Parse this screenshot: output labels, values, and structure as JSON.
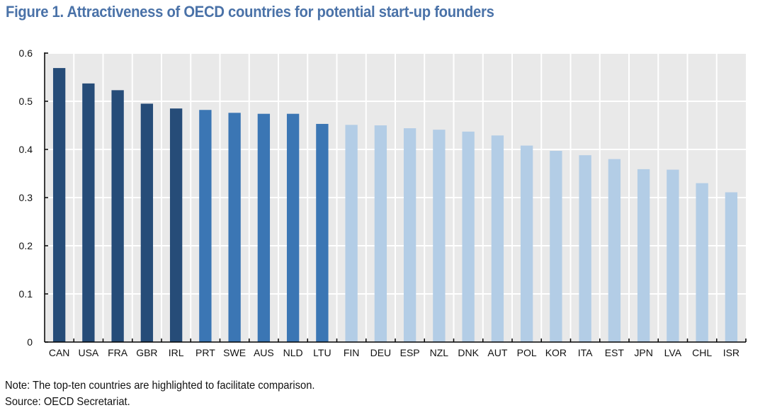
{
  "title": "Figure 1. Attractiveness of OECD countries for potential start-up founders",
  "note": "Note: The top-ten countries are highlighted to facilitate comparison.",
  "source": "Source: OECD Secretariat.",
  "colors": {
    "dark": "#264c78",
    "mid": "#3b76b4",
    "light": "#b3cde6",
    "plot_bg": "#e9e9e9",
    "grid": "#ffffff",
    "title": "#4a72a8"
  },
  "chart_data": {
    "type": "bar",
    "title": "Figure 1. Attractiveness of OECD countries for potential start-up founders",
    "xlabel": "",
    "ylabel": "",
    "ylim": [
      0,
      0.6
    ],
    "yticks": [
      "0",
      "0.1",
      "0.2",
      "0.3",
      "0.4",
      "0.5",
      "0.6"
    ],
    "grid": true,
    "categories": [
      "CAN",
      "USA",
      "FRA",
      "GBR",
      "IRL",
      "PRT",
      "SWE",
      "AUS",
      "NLD",
      "LTU",
      "FIN",
      "DEU",
      "ESP",
      "NZL",
      "DNK",
      "AUT",
      "POL",
      "KOR",
      "ITA",
      "EST",
      "JPN",
      "LVA",
      "CHL",
      "ISR"
    ],
    "values": [
      0.569,
      0.537,
      0.523,
      0.495,
      0.485,
      0.482,
      0.476,
      0.474,
      0.474,
      0.453,
      0.451,
      0.45,
      0.444,
      0.441,
      0.437,
      0.429,
      0.408,
      0.397,
      0.388,
      0.38,
      0.359,
      0.358,
      0.33,
      0.311
    ],
    "color_groups": [
      "dark",
      "dark",
      "dark",
      "dark",
      "dark",
      "mid",
      "mid",
      "mid",
      "mid",
      "mid",
      "light",
      "light",
      "light",
      "light",
      "light",
      "light",
      "light",
      "light",
      "light",
      "light",
      "light",
      "light",
      "light",
      "light"
    ]
  }
}
